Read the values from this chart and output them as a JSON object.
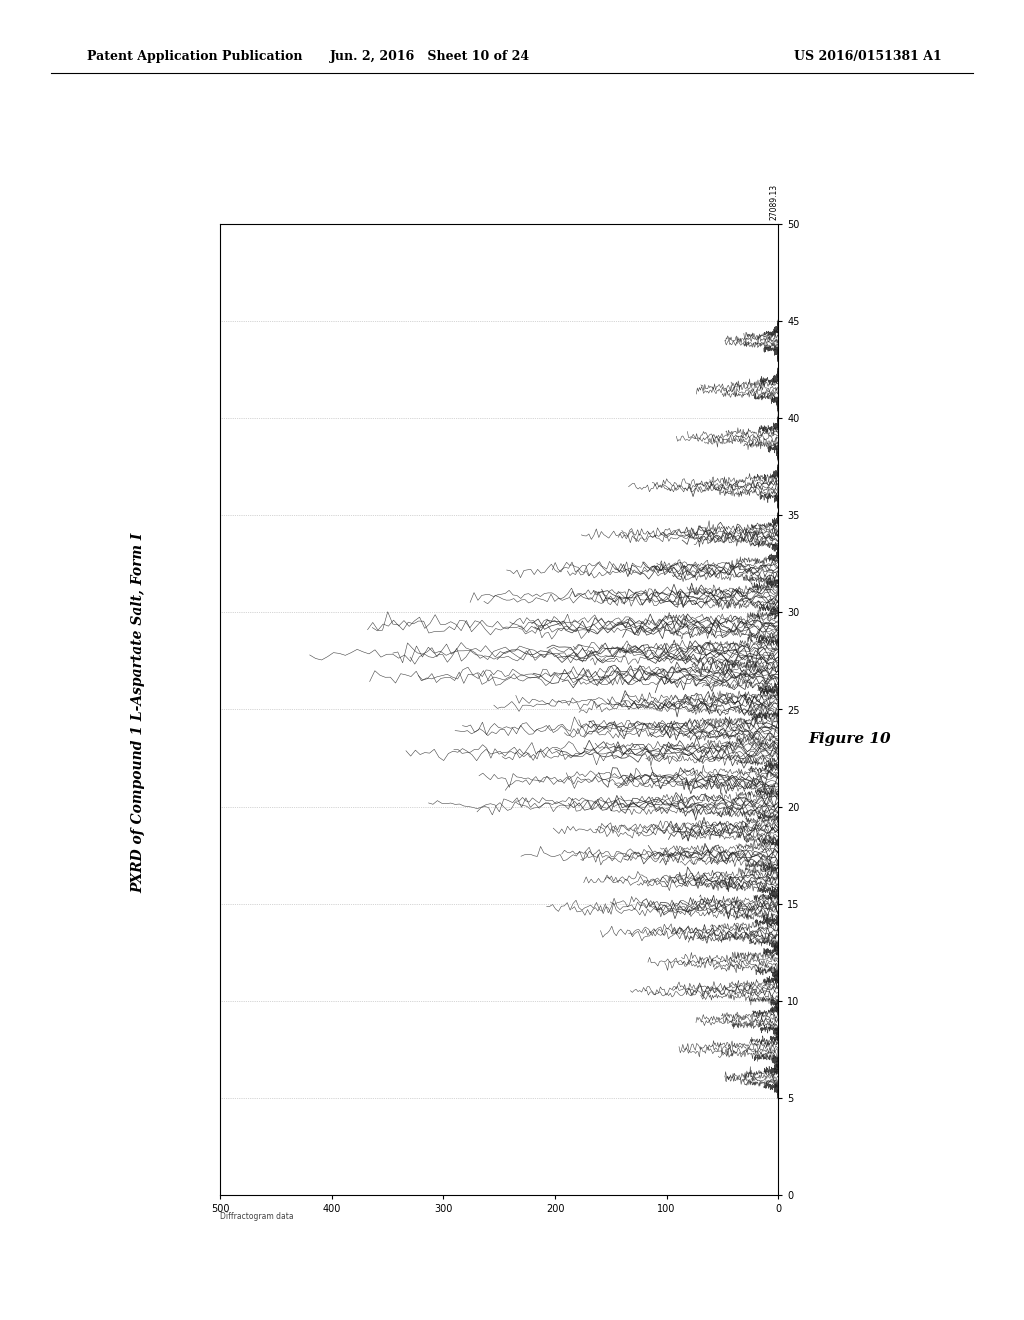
{
  "title": "PXRD of Compound 1 L-Aspartate Salt, Form I",
  "figure_label": "Figure 10",
  "header_left": "Patent Application Publication",
  "header_mid": "Jun. 2, 2016   Sheet 10 of 24",
  "header_right": "US 2016/0151381 A1",
  "footer_note": "Diffractogram data",
  "intensity_label": "27089.13",
  "y_ticks": [
    0,
    5,
    10,
    15,
    20,
    25,
    30,
    35,
    40,
    45,
    50
  ],
  "x_ticks_labels": [
    "500",
    "400",
    "300",
    "200",
    "100",
    "0"
  ],
  "x_ticks_pos": [
    0,
    100,
    200,
    300,
    400,
    500
  ],
  "background_color": "#ffffff",
  "plot_bg_color": "#ffffff",
  "border_color": "#000000",
  "trace_color": "#222222",
  "grid_color": "#999999",
  "title_fontsize": 10,
  "header_fontsize": 9,
  "peak_positions": [
    6.0,
    7.5,
    9.0,
    10.5,
    12.0,
    13.5,
    14.8,
    16.2,
    17.5,
    18.8,
    20.1,
    21.4,
    22.8,
    24.0,
    25.3,
    26.7,
    27.9,
    29.3,
    30.8,
    32.2,
    34.0,
    36.5,
    39.0,
    41.5,
    44.0
  ],
  "peak_intensities": [
    0.12,
    0.22,
    0.18,
    0.32,
    0.28,
    0.38,
    0.5,
    0.42,
    0.55,
    0.48,
    0.75,
    0.65,
    0.8,
    0.72,
    0.62,
    0.88,
    1.0,
    0.92,
    0.68,
    0.58,
    0.42,
    0.32,
    0.22,
    0.18,
    0.12
  ]
}
